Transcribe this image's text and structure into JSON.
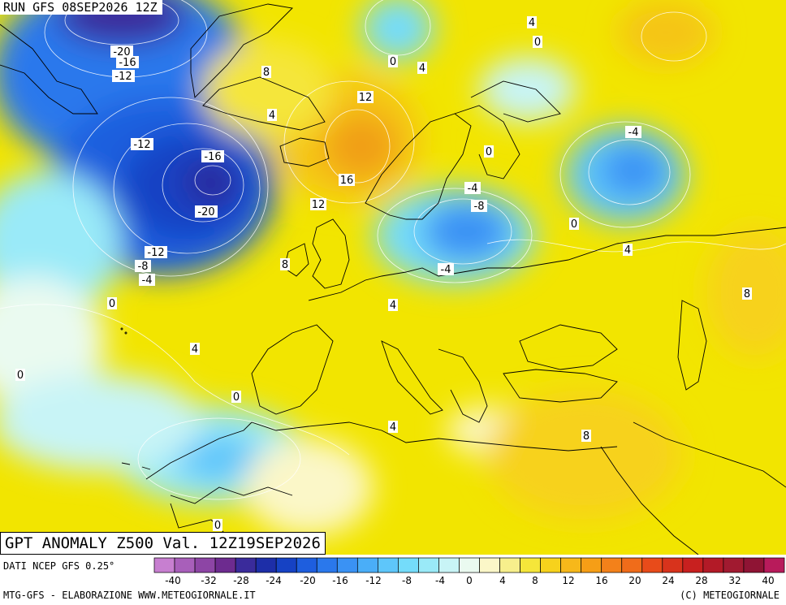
{
  "header": {
    "run": "RUN GFS 08SEP2026 12Z"
  },
  "title": "GPT ANOMALY Z500 Val. 12Z19SEP2026",
  "source": "DATI NCEP GFS 0.25°",
  "footer": {
    "left": "MTG-GFS - ELABORAZIONE WWW.METEOGIORNALE.IT",
    "right": "(C) METEOGIORNALE"
  },
  "colors": {
    "sea": "#f3e300",
    "palette": [
      "#c77fd0",
      "#a85fba",
      "#8d45a5",
      "#6d2b8f",
      "#3a2b9b",
      "#1d2ea8",
      "#1642c4",
      "#1e5ede",
      "#2a78ec",
      "#3a92f4",
      "#4aaef8",
      "#5ec6fa",
      "#74dcfa",
      "#9aeaf8",
      "#c8f4f6",
      "#eafaf0",
      "#fbf7c8",
      "#f7ef8c",
      "#f5e63a",
      "#f7d21c",
      "#f7b81a",
      "#f69e16",
      "#f3811a",
      "#f06c1a",
      "#e84b1a",
      "#d8331c",
      "#c8201f",
      "#b31a27",
      "#a11a30",
      "#8f1434",
      "#b81b5b"
    ]
  },
  "scale": {
    "ticks": [
      "-40",
      "-32",
      "-28",
      "-24",
      "-20",
      "-16",
      "-12",
      "-8",
      "-4",
      "0",
      "4",
      "8",
      "12",
      "16",
      "20",
      "24",
      "28",
      "32",
      "40"
    ]
  },
  "contour_labels": [
    {
      "v": "-20"
    },
    {
      "v": "-16"
    },
    {
      "v": "-12"
    },
    {
      "v": "8"
    },
    {
      "v": "12"
    },
    {
      "v": "4"
    },
    {
      "v": "4"
    },
    {
      "v": "0"
    },
    {
      "v": "0"
    },
    {
      "v": "4"
    },
    {
      "v": "-12"
    },
    {
      "v": "-16"
    },
    {
      "v": "16"
    },
    {
      "v": "12"
    },
    {
      "v": "-20"
    },
    {
      "v": "0"
    },
    {
      "v": "-4"
    },
    {
      "v": "-4"
    },
    {
      "v": "-8"
    },
    {
      "v": "0"
    },
    {
      "v": "4"
    },
    {
      "v": "-12"
    },
    {
      "v": "-8"
    },
    {
      "v": "-4"
    },
    {
      "v": "8"
    },
    {
      "v": "-4"
    },
    {
      "v": "8"
    },
    {
      "v": "0"
    },
    {
      "v": "4"
    },
    {
      "v": "4"
    },
    {
      "v": "0"
    },
    {
      "v": "0"
    },
    {
      "v": "4"
    },
    {
      "v": "8"
    },
    {
      "v": "0"
    }
  ]
}
